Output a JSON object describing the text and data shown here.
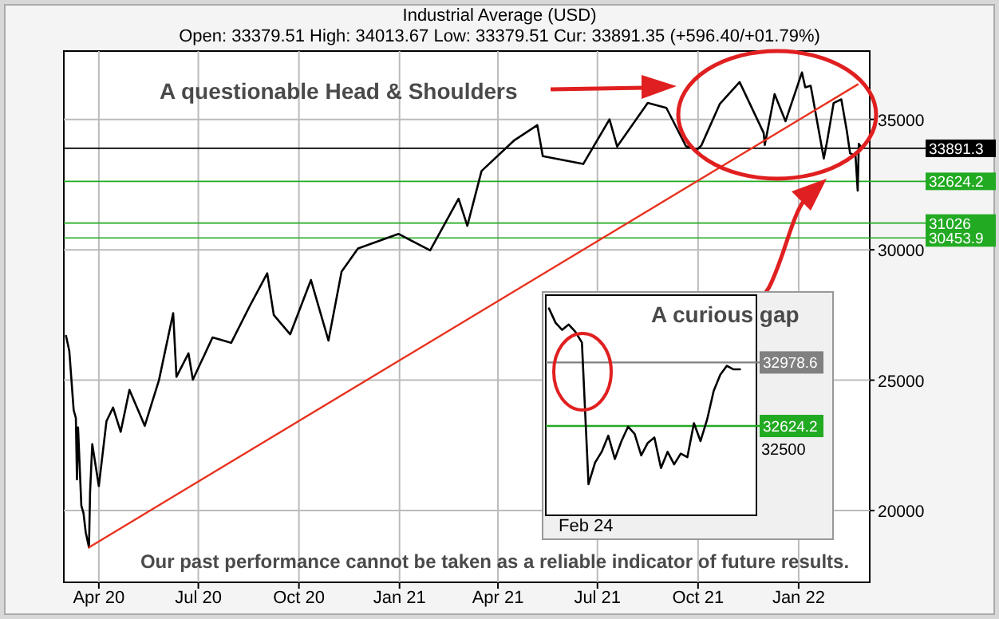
{
  "chart_data": [
    {
      "type": "line",
      "title": "Industrial Average (USD)",
      "subtitle": "Open: 33379.51 High: 34013.67 Low: 33379.51 Cur: 33891.35 (+596.40/+01.79%)",
      "x": [
        "2020-03-02",
        "2020-03-05",
        "2020-03-09",
        "2020-03-11",
        "2020-03-12",
        "2020-03-13",
        "2020-03-16",
        "2020-03-18",
        "2020-03-20",
        "2020-03-23",
        "2020-03-24",
        "2020-03-26",
        "2020-04-01",
        "2020-04-08",
        "2020-04-14",
        "2020-04-21",
        "2020-04-29",
        "2020-05-13",
        "2020-05-26",
        "2020-06-08",
        "2020-06-11",
        "2020-06-22",
        "2020-06-26",
        "2020-07-14",
        "2020-07-31",
        "2020-08-17",
        "2020-09-02",
        "2020-09-08",
        "2020-09-23",
        "2020-10-12",
        "2020-10-28",
        "2020-11-09",
        "2020-11-24",
        "2020-12-31",
        "2021-01-29",
        "2021-02-24",
        "2021-03-04",
        "2021-03-17",
        "2021-04-16",
        "2021-05-07",
        "2021-05-12",
        "2021-06-18",
        "2021-07-12",
        "2021-07-19",
        "2021-08-16",
        "2021-09-02",
        "2021-09-20",
        "2021-09-30",
        "2021-10-04",
        "2021-10-21",
        "2021-11-08",
        "2021-11-30",
        "2021-12-01",
        "2021-12-10",
        "2021-12-20",
        "2022-01-04",
        "2022-01-07",
        "2022-01-12",
        "2022-01-24",
        "2022-01-27",
        "2022-02-02",
        "2022-02-09",
        "2022-02-14",
        "2022-02-17",
        "2022-02-22",
        "2022-02-24",
        "2022-02-25",
        "2022-02-28"
      ],
      "series": [
        {
          "color": "#000000",
          "values": [
            26700,
            26120,
            23850,
            23550,
            21200,
            23190,
            20190,
            19900,
            19170,
            18590,
            20700,
            22550,
            20940,
            23430,
            23950,
            23020,
            24630,
            23250,
            25000,
            27570,
            25130,
            26030,
            25020,
            26640,
            26430,
            27840,
            29100,
            27500,
            26760,
            28840,
            26520,
            29160,
            30050,
            30610,
            29980,
            31960,
            30920,
            33020,
            34200,
            34780,
            33590,
            33290,
            35000,
            33960,
            35630,
            35440,
            33970,
            33840,
            34000,
            35600,
            36430,
            34480,
            34020,
            35970,
            34930,
            36800,
            36230,
            36290,
            33500,
            34160,
            35630,
            35770,
            34570,
            33700,
            33600,
            32270,
            34060,
            33890
          ]
        },
        {
          "type": "line",
          "x": [
            "2020-03-23",
            "2022-02-24"
          ],
          "color": "#e8321e",
          "values": [
            18590,
            36340
          ]
        }
      ],
      "xlim": [
        "2020-02-29",
        "2022-03-07"
      ],
      "ylim": [
        17250,
        37620
      ],
      "xticks": [
        {
          "value": "2020-04-01",
          "label": "Apr 20"
        },
        {
          "value": "2020-07-01",
          "label": "Jul 20"
        },
        {
          "value": "2020-10-01",
          "label": "Oct 20"
        },
        {
          "value": "2021-01-01",
          "label": "Jan 21"
        },
        {
          "value": "2021-04-01",
          "label": "Apr 21"
        },
        {
          "value": "2021-07-01",
          "label": "Jul 21"
        },
        {
          "value": "2021-10-01",
          "label": "Oct 21"
        },
        {
          "value": "2022-01-01",
          "label": "Jan 22"
        }
      ],
      "yticks": [
        20000,
        25000,
        30000,
        35000
      ],
      "grid": true,
      "ref_lines": [
        {
          "axis": "y",
          "value": 33891.35,
          "label": "33891.3",
          "color": "#000000"
        },
        {
          "axis": "y",
          "value": 32624.2,
          "label": "32624.2",
          "color": "#22aa22"
        },
        {
          "axis": "y",
          "value": 31026,
          "label": "31026",
          "color": "#22aa22"
        },
        {
          "axis": "y",
          "value": 30453.9,
          "label": "30453.9",
          "color": "#22aa22"
        }
      ],
      "annotations": [
        "A questionable Head & Shoulders",
        "Our past performance cannot be taken as a reliable indicator of future results."
      ]
    },
    {
      "type": "line",
      "categories": [
        null,
        null,
        null,
        null,
        null,
        null,
        null,
        null,
        null,
        null,
        null,
        null,
        null,
        null,
        null,
        null,
        null,
        null,
        null,
        null,
        null,
        null,
        null,
        null,
        null,
        null,
        null,
        null,
        null,
        null,
        null,
        null
      ],
      "series": [
        {
          "color": "#000000",
          "values": [
            33280,
            33200,
            33160,
            33190,
            33150,
            33090,
            32300,
            32420,
            32480,
            32570,
            32440,
            32540,
            32620,
            32580,
            32460,
            32530,
            32560,
            32390,
            32480,
            32410,
            32470,
            32450,
            32640,
            32540,
            32660,
            32820,
            32910,
            32960,
            32940,
            32940,
            null,
            null
          ]
        }
      ],
      "ylim": [
        32126,
        33354
      ],
      "ref_lines": [
        {
          "axis": "y",
          "value": 32978.6,
          "label": "32978.6",
          "color": "#808080"
        },
        {
          "axis": "y",
          "value": 32624.2,
          "label": "32624.2",
          "color": "#22aa22"
        }
      ],
      "annotations": [
        "A curious gap",
        "Feb 24",
        "32500"
      ]
    }
  ]
}
